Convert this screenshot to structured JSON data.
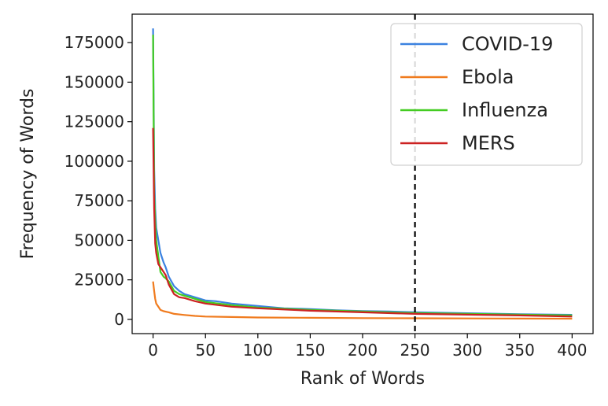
{
  "chart_data": {
    "type": "line",
    "xlabel": "Rank of Words",
    "ylabel": "Frequency of Words",
    "xlim": [
      -20,
      420
    ],
    "ylim": [
      -9000,
      193000
    ],
    "xticks": [
      0,
      50,
      100,
      150,
      200,
      250,
      300,
      350,
      400
    ],
    "yticks": [
      0,
      25000,
      50000,
      75000,
      100000,
      125000,
      150000,
      175000
    ],
    "grid": false,
    "legend_position": "top-right",
    "vline": {
      "x": 250,
      "style": "dashed",
      "color": "#000000"
    },
    "series": [
      {
        "name": "COVID-19",
        "color": "#3b82e0",
        "points": [
          [
            0,
            184000
          ],
          [
            1,
            95000
          ],
          [
            2,
            70000
          ],
          [
            3,
            58000
          ],
          [
            5,
            50000
          ],
          [
            7,
            42000
          ],
          [
            10,
            36000
          ],
          [
            12,
            33000
          ],
          [
            15,
            27000
          ],
          [
            20,
            21000
          ],
          [
            25,
            18000
          ],
          [
            30,
            16000
          ],
          [
            40,
            14000
          ],
          [
            50,
            12000
          ],
          [
            60,
            11500
          ],
          [
            75,
            10000
          ],
          [
            100,
            8500
          ],
          [
            125,
            7000
          ],
          [
            150,
            6500
          ],
          [
            175,
            5800
          ],
          [
            200,
            5300
          ],
          [
            225,
            5000
          ],
          [
            250,
            4500
          ],
          [
            300,
            3900
          ],
          [
            350,
            3300
          ],
          [
            400,
            2900
          ]
        ]
      },
      {
        "name": "Ebola",
        "color": "#f07b1e",
        "points": [
          [
            0,
            24000
          ],
          [
            1,
            18000
          ],
          [
            2,
            13000
          ],
          [
            3,
            10000
          ],
          [
            5,
            8000
          ],
          [
            7,
            6000
          ],
          [
            10,
            5200
          ],
          [
            15,
            4500
          ],
          [
            20,
            3500
          ],
          [
            30,
            2800
          ],
          [
            40,
            2200
          ],
          [
            50,
            1800
          ],
          [
            75,
            1500
          ],
          [
            100,
            1200
          ],
          [
            150,
            1000
          ],
          [
            200,
            800
          ],
          [
            250,
            700
          ],
          [
            300,
            600
          ],
          [
            350,
            500
          ],
          [
            400,
            450
          ]
        ]
      },
      {
        "name": "Influenza",
        "color": "#44cc22",
        "points": [
          [
            0,
            180000
          ],
          [
            1,
            80000
          ],
          [
            2,
            62000
          ],
          [
            3,
            50000
          ],
          [
            5,
            40000
          ],
          [
            7,
            30000
          ],
          [
            10,
            27000
          ],
          [
            12,
            26000
          ],
          [
            15,
            24000
          ],
          [
            20,
            18000
          ],
          [
            25,
            16000
          ],
          [
            30,
            15000
          ],
          [
            40,
            13000
          ],
          [
            50,
            11000
          ],
          [
            75,
            9000
          ],
          [
            100,
            7500
          ],
          [
            150,
            6000
          ],
          [
            200,
            5000
          ],
          [
            250,
            4000
          ],
          [
            300,
            3500
          ],
          [
            350,
            3000
          ],
          [
            400,
            2500
          ]
        ]
      },
      {
        "name": "MERS",
        "color": "#cc2222",
        "points": [
          [
            0,
            121000
          ],
          [
            1,
            70000
          ],
          [
            2,
            48000
          ],
          [
            3,
            42000
          ],
          [
            5,
            35000
          ],
          [
            7,
            33000
          ],
          [
            10,
            30000
          ],
          [
            12,
            28000
          ],
          [
            15,
            22000
          ],
          [
            20,
            16000
          ],
          [
            25,
            14000
          ],
          [
            30,
            13500
          ],
          [
            40,
            11500
          ],
          [
            50,
            10000
          ],
          [
            75,
            8000
          ],
          [
            100,
            7000
          ],
          [
            150,
            5500
          ],
          [
            200,
            4500
          ],
          [
            250,
            3500
          ],
          [
            300,
            3000
          ],
          [
            350,
            2500
          ],
          [
            400,
            1800
          ]
        ]
      }
    ]
  }
}
